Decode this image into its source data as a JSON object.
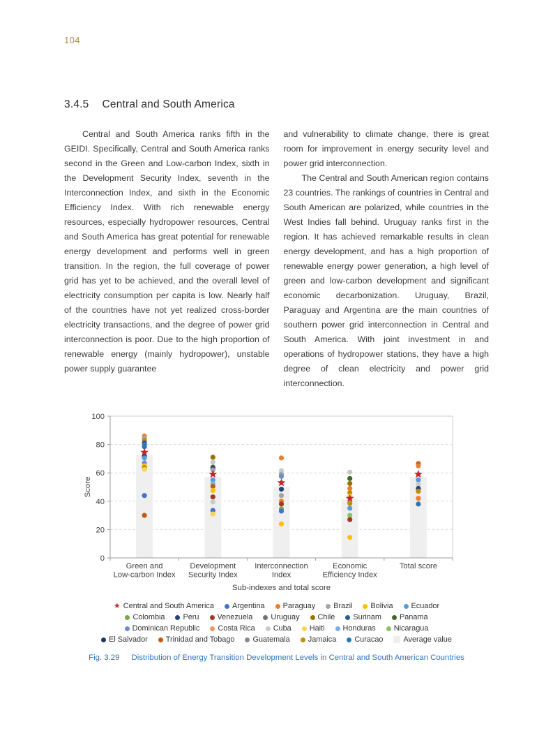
{
  "page": {
    "number": "104",
    "heading": {
      "number": "3.4.5",
      "title": "Central and South America"
    },
    "left_column": {
      "paragraph": "Central and South America ranks fifth in the GEIDI. Specifically, Central and South America ranks second in the Green and Low-carbon Index, sixth in the Development Security Index, seventh in the Interconnection Index, and sixth in the Economic Efficiency Index. With rich renewable energy resources, especially hydropower resources, Central and South America has great potential for renewable energy development and performs well in green transition. In the region, the full coverage of power grid has yet to be achieved, and the overall level of electricity consumption per capita is low. Nearly half of the countries have not yet realized cross-border electricity transactions, and the degree of power grid interconnection is poor. Due to the high proportion of renewable energy (mainly hydropower), unstable power supply guarantee"
    },
    "right_column": {
      "continuation": "and vulnerability to climate change, there is great room for improvement in energy security level and power grid interconnection.",
      "paragraph": "The Central and South American region contains 23 countries. The rankings of countries in Central and South American are polarized, while countries in the West Indies fall behind. Uruguay ranks first in the region. It has achieved remarkable results in clean energy development, and has a high proportion of renewable energy power generation, a high level of green and low-carbon development and significant economic decarbonization. Uruguay, Brazil, Paraguay and Argentina are the main countries of southern power grid interconnection in Central and South America. With joint investment in and operations of hydropower stations, they have a high degree of clean electricity and power grid interconnection."
    },
    "figure": {
      "caption_label": "Fig. 3.29",
      "caption_text": "Distribution of Energy Transition Development Levels in Central and South American Countries"
    }
  },
  "chart_data": {
    "type": "scatter",
    "title": "",
    "xlabel": "Sub-indexes and total score",
    "ylabel": "Score",
    "ylim": [
      0,
      100
    ],
    "yticks": [
      0,
      20,
      40,
      60,
      80,
      100
    ],
    "grid": "horizontal-dashed",
    "legend_position": "bottom",
    "categories": [
      "Green and Low-carbon Index",
      "Development Security Index",
      "Interconnection Index",
      "Economic Efficiency Index",
      "Total score"
    ],
    "category_label_lines": [
      [
        "Green and",
        "Low-carbon Index"
      ],
      [
        "Development",
        "Security Index"
      ],
      [
        "Interconnection",
        "Index"
      ],
      [
        "Economic",
        "Efficiency Index"
      ],
      [
        "Total score"
      ]
    ],
    "average_bar": {
      "label": "Average value",
      "color": "#EFEFEF",
      "values": [
        72.5,
        57,
        50,
        41.5,
        57
      ]
    },
    "highlight_series": {
      "label": "Central and South America",
      "marker": "star",
      "color": "#C0272D",
      "values": [
        74.5,
        59,
        53,
        42,
        59
      ]
    },
    "country_points": [
      {
        "category": "Green and Low-carbon Index",
        "points": [
          {
            "value": 86,
            "color": "#ED7D31"
          },
          {
            "value": 84.5,
            "color": "#A5A5A5"
          },
          {
            "value": 83,
            "color": "#BF8F00"
          },
          {
            "value": 81,
            "color": "#264478"
          },
          {
            "value": 80,
            "color": "#4472C4"
          },
          {
            "value": 78.5,
            "color": "#2E75B6"
          },
          {
            "value": 71.5,
            "color": "#1F3864"
          },
          {
            "value": 70.5,
            "color": "#5B9BD5"
          },
          {
            "value": 67,
            "color": "#698ED0"
          },
          {
            "value": 65,
            "color": "#FFC000"
          },
          {
            "value": 63.5,
            "color": "#997300"
          },
          {
            "value": 62.5,
            "color": "#FFD34E"
          },
          {
            "value": 44,
            "color": "#4472C4"
          },
          {
            "value": 30,
            "color": "#C55A11"
          }
        ]
      },
      {
        "category": "Development Security Index",
        "points": [
          {
            "value": 71,
            "color": "#997300"
          },
          {
            "value": 67.5,
            "color": "#C9C9C9"
          },
          {
            "value": 64,
            "color": "#43682B"
          },
          {
            "value": 63,
            "color": "#264478"
          },
          {
            "value": 62,
            "color": "#A5A5A5"
          },
          {
            "value": 55,
            "color": "#5B9BD5"
          },
          {
            "value": 52.5,
            "color": "#7CAFDD"
          },
          {
            "value": 50.5,
            "color": "#C55A11"
          },
          {
            "value": 47.5,
            "color": "#FFC000"
          },
          {
            "value": 43,
            "color": "#9E3A26"
          },
          {
            "value": 39.5,
            "color": "#C9C9C9"
          },
          {
            "value": 33.5,
            "color": "#4472C4"
          },
          {
            "value": 31,
            "color": "#FFD34E"
          }
        ]
      },
      {
        "category": "Interconnection Index",
        "points": [
          {
            "value": 70.5,
            "color": "#ED7D31"
          },
          {
            "value": 61.5,
            "color": "#C9C9C9"
          },
          {
            "value": 59,
            "color": "#A5A5A5"
          },
          {
            "value": 57.5,
            "color": "#698ED0"
          },
          {
            "value": 48.5,
            "color": "#264478"
          },
          {
            "value": 44,
            "color": "#A5A5A5"
          },
          {
            "value": 40,
            "color": "#ED7D31"
          },
          {
            "value": 38,
            "color": "#9E3A26"
          },
          {
            "value": 34.5,
            "color": "#70AD47"
          },
          {
            "value": 33,
            "color": "#4472C4"
          },
          {
            "value": 24,
            "color": "#FFC000"
          }
        ]
      },
      {
        "category": "Economic Efficiency Index",
        "points": [
          {
            "value": 60.5,
            "color": "#C9C9C9"
          },
          {
            "value": 56,
            "color": "#43682B"
          },
          {
            "value": 52.5,
            "color": "#997300"
          },
          {
            "value": 49,
            "color": "#ED7D31"
          },
          {
            "value": 46,
            "color": "#BF8F00"
          },
          {
            "value": 43.5,
            "color": "#FFD34E"
          },
          {
            "value": 38.5,
            "color": "#BF8F00"
          },
          {
            "value": 35,
            "color": "#5B9BD5"
          },
          {
            "value": 30,
            "color": "#8CC168"
          },
          {
            "value": 27,
            "color": "#9E3A26"
          },
          {
            "value": 14.5,
            "color": "#FFC000"
          }
        ]
      },
      {
        "category": "Total score",
        "points": [
          {
            "value": 66.5,
            "color": "#C55A11"
          },
          {
            "value": 65,
            "color": "#ED7D31"
          },
          {
            "value": 55,
            "color": "#5B9BD5"
          },
          {
            "value": 52,
            "color": "#C9C9C9"
          },
          {
            "value": 49,
            "color": "#264478"
          },
          {
            "value": 47,
            "color": "#BF8F00"
          },
          {
            "value": 42,
            "color": "#ED7D31"
          },
          {
            "value": 38,
            "color": "#2E75B6"
          }
        ]
      }
    ],
    "legend_rows": [
      [
        {
          "label": "Central and South America",
          "marker": "star",
          "color": "#C0272D"
        },
        {
          "label": "Argentina",
          "marker": "circle",
          "color": "#4472C4"
        },
        {
          "label": "Paraguay",
          "marker": "circle",
          "color": "#ED7D31"
        },
        {
          "label": "Brazil",
          "marker": "circle",
          "color": "#A5A5A5"
        },
        {
          "label": "Bolivia",
          "marker": "circle",
          "color": "#FFC000"
        },
        {
          "label": "Ecuador",
          "marker": "circle",
          "color": "#5B9BD5"
        }
      ],
      [
        {
          "label": "Colombia",
          "marker": "circle",
          "color": "#70AD47"
        },
        {
          "label": "Peru",
          "marker": "circle",
          "color": "#264478"
        },
        {
          "label": "Venezuela",
          "marker": "circle",
          "color": "#9E3A26"
        },
        {
          "label": "Uruguay",
          "marker": "circle",
          "color": "#767171"
        },
        {
          "label": "Chile",
          "marker": "circle",
          "color": "#997300"
        },
        {
          "label": "Surinam",
          "marker": "circle",
          "color": "#255E91"
        },
        {
          "label": "Panama",
          "marker": "circle",
          "color": "#43682B"
        }
      ],
      [
        {
          "label": "Dominican Republic",
          "marker": "circle",
          "color": "#698ED0"
        },
        {
          "label": "Costa Rica",
          "marker": "circle",
          "color": "#F1975A"
        },
        {
          "label": "Cuba",
          "marker": "circle",
          "color": "#C9C9C9"
        },
        {
          "label": "Haiti",
          "marker": "circle",
          "color": "#FFD34E"
        },
        {
          "label": "Honduras",
          "marker": "circle",
          "color": "#7CAFDD"
        },
        {
          "label": "Nicaragua",
          "marker": "circle",
          "color": "#8CC168"
        }
      ],
      [
        {
          "label": "El Salvador",
          "marker": "circle",
          "color": "#1F3864"
        },
        {
          "label": "Trinidad and Tobago",
          "marker": "circle",
          "color": "#C55A11"
        },
        {
          "label": "Guatemala",
          "marker": "circle",
          "color": "#898989"
        },
        {
          "label": "Jamaica",
          "marker": "circle",
          "color": "#BF8F00"
        },
        {
          "label": "Curacao",
          "marker": "circle",
          "color": "#2E75B6"
        },
        {
          "label": "Average value",
          "marker": "square",
          "color": "#EFEFEF"
        }
      ]
    ]
  }
}
